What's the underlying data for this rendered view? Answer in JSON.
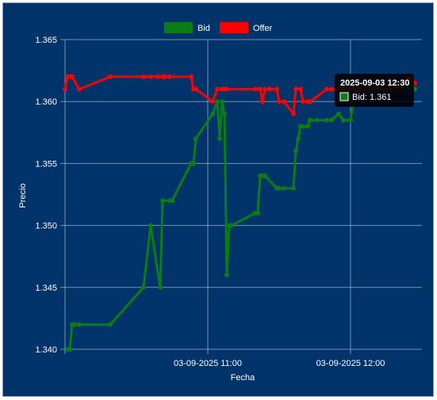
{
  "chart_data": {
    "type": "line",
    "xlabel": "Fecha",
    "ylabel": "Precio",
    "ylim": [
      1.34,
      1.365
    ],
    "yticks": [
      "1.340",
      "1.345",
      "1.350",
      "1.355",
      "1.360",
      "1.365"
    ],
    "xticks": [
      {
        "t": 60,
        "label": "03-09-2025 11:00"
      },
      {
        "t": 120,
        "label": "03-09-2025 12:00"
      }
    ],
    "xlim_minutes_since_10_00": [
      0,
      150
    ],
    "grid": true,
    "legend_position": "top",
    "series": [
      {
        "name": "Bid",
        "color": "#0a7d14",
        "points": [
          [
            1,
            1.34
          ],
          [
            2,
            1.34
          ],
          [
            3,
            1.342
          ],
          [
            4,
            1.342
          ],
          [
            6,
            1.342
          ],
          [
            19,
            1.342
          ],
          [
            33,
            1.345
          ],
          [
            36,
            1.35
          ],
          [
            40,
            1.345
          ],
          [
            41,
            1.352
          ],
          [
            44,
            1.352
          ],
          [
            45,
            1.352
          ],
          [
            53,
            1.355
          ],
          [
            54,
            1.355
          ],
          [
            55,
            1.357
          ],
          [
            62,
            1.359
          ],
          [
            64,
            1.36
          ],
          [
            65,
            1.357
          ],
          [
            66,
            1.36
          ],
          [
            67,
            1.359
          ],
          [
            68,
            1.346
          ],
          [
            69,
            1.35
          ],
          [
            70,
            1.35
          ],
          [
            80,
            1.351
          ],
          [
            81,
            1.351
          ],
          [
            82,
            1.354
          ],
          [
            83,
            1.354
          ],
          [
            84,
            1.354
          ],
          [
            89,
            1.353
          ],
          [
            90,
            1.353
          ],
          [
            92,
            1.353
          ],
          [
            96,
            1.353
          ],
          [
            97,
            1.356
          ],
          [
            98,
            1.357
          ],
          [
            99,
            1.358
          ],
          [
            100,
            1.358
          ],
          [
            102,
            1.358
          ],
          [
            103,
            1.3585
          ],
          [
            106,
            1.3585
          ],
          [
            110,
            1.3585
          ],
          [
            112,
            1.3585
          ],
          [
            115,
            1.359
          ],
          [
            117,
            1.3585
          ],
          [
            120,
            1.3585
          ],
          [
            122,
            1.361
          ],
          [
            130,
            1.361
          ],
          [
            140,
            1.361
          ],
          [
            145,
            1.3615
          ],
          [
            147,
            1.361
          ]
        ]
      },
      {
        "name": "Offer",
        "color": "#ff0000",
        "points": [
          [
            0,
            1.361
          ],
          [
            1,
            1.362
          ],
          [
            2,
            1.362
          ],
          [
            3,
            1.362
          ],
          [
            6,
            1.361
          ],
          [
            19,
            1.362
          ],
          [
            33,
            1.362
          ],
          [
            36,
            1.362
          ],
          [
            39,
            1.362
          ],
          [
            41,
            1.362
          ],
          [
            42,
            1.362
          ],
          [
            44,
            1.362
          ],
          [
            53,
            1.362
          ],
          [
            54,
            1.361
          ],
          [
            55,
            1.361
          ],
          [
            62,
            1.36
          ],
          [
            64,
            1.361
          ],
          [
            66,
            1.361
          ],
          [
            67,
            1.361
          ],
          [
            68,
            1.361
          ],
          [
            80,
            1.361
          ],
          [
            82,
            1.361
          ],
          [
            83,
            1.36
          ],
          [
            84,
            1.361
          ],
          [
            86,
            1.361
          ],
          [
            89,
            1.361
          ],
          [
            90,
            1.36
          ],
          [
            92,
            1.36
          ],
          [
            96,
            1.359
          ],
          [
            97,
            1.361
          ],
          [
            99,
            1.361
          ],
          [
            100,
            1.36
          ],
          [
            102,
            1.36
          ],
          [
            103,
            1.36
          ],
          [
            110,
            1.361
          ],
          [
            112,
            1.361
          ],
          [
            115,
            1.361
          ],
          [
            117,
            1.361
          ],
          [
            120,
            1.361
          ],
          [
            122,
            1.361
          ],
          [
            130,
            1.361
          ],
          [
            140,
            1.361
          ],
          [
            145,
            1.362
          ],
          [
            147,
            1.3615
          ]
        ]
      }
    ],
    "tooltip": {
      "title": "2025-09-03 12:30",
      "series": "Bid",
      "value": "1.361",
      "body": "Bid: 1.361"
    }
  }
}
